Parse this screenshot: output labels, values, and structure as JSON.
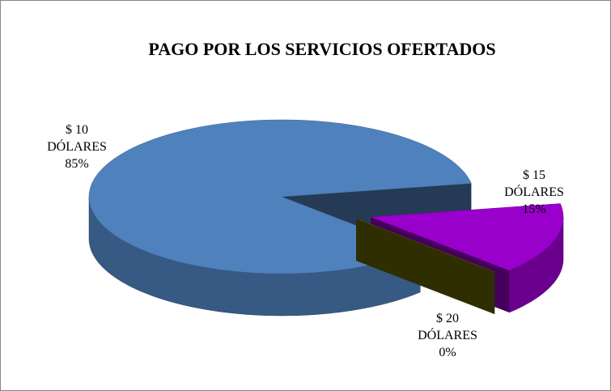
{
  "chart_data": {
    "type": "pie3d",
    "title": "PAGO POR LOS SERVICIOS OFERTADOS",
    "categories": [
      "$ 10 DÓLARES",
      "$ 15 DÓLARES",
      "$ 20 DÓLARES"
    ],
    "values": [
      85,
      15,
      0
    ],
    "value_labels": [
      "85%",
      "15%",
      "0%"
    ],
    "colors": [
      "#4f81bd",
      "#9900cc",
      "#666600"
    ]
  }
}
